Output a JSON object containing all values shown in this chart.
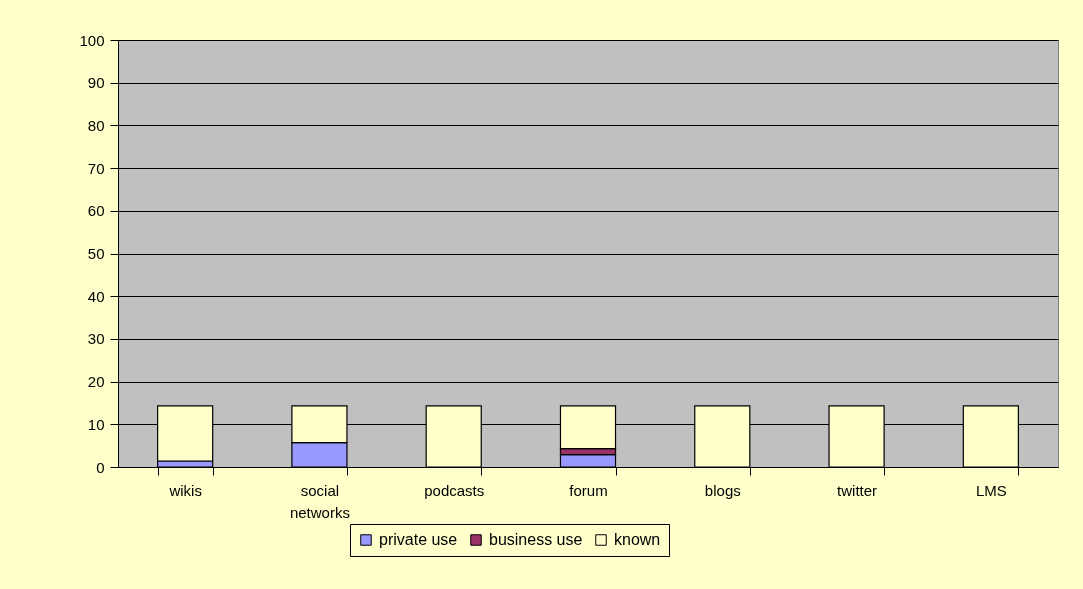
{
  "chart_data": {
    "type": "bar",
    "stacked": true,
    "categories": [
      "wikis",
      "social networks",
      "podcasts",
      "forum",
      "blogs",
      "twitter",
      "LMS"
    ],
    "series": [
      {
        "name": "private use",
        "color": "#9999ff",
        "values": [
          1.4,
          5.7,
          0,
          2.9,
          0,
          0,
          0
        ]
      },
      {
        "name": "business use",
        "color": "#993366",
        "values": [
          0,
          0,
          0,
          1.4,
          0,
          0,
          0
        ]
      },
      {
        "name": "known",
        "color": "#ffffcc",
        "values": [
          12.9,
          8.6,
          14.3,
          10.0,
          14.3,
          14.3,
          14.3
        ]
      }
    ],
    "ylim": [
      0,
      100
    ],
    "yticks": [
      0,
      10,
      20,
      30,
      40,
      50,
      60,
      70,
      80,
      90,
      100
    ],
    "grid": "y",
    "legend": "bottom"
  }
}
